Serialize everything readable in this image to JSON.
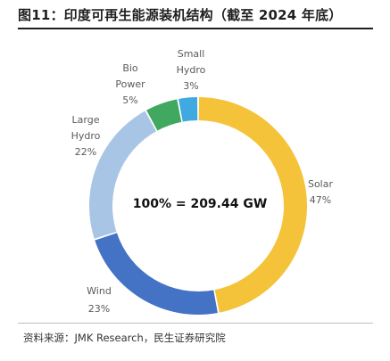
{
  "figure": {
    "title": "图11：印度可再生能源装机结构（截至 2024 年底）",
    "source": "资料来源：JMK Research，民生证券研究院"
  },
  "chart_data": {
    "type": "pie",
    "style": "donut",
    "center_label": "100% = 209.44 GW",
    "slices": [
      {
        "name": "Solar",
        "value": 47,
        "value_label": "47%",
        "color": "#f4c33a"
      },
      {
        "name": "Wind",
        "value": 23,
        "value_label": "23%",
        "color": "#4472c4"
      },
      {
        "name": "Large Hydro",
        "value": 22,
        "value_label": "22%",
        "color": "#a9c5e6"
      },
      {
        "name": "Bio Power",
        "value": 5,
        "value_label": "5%",
        "color": "#41a85f"
      },
      {
        "name": "Small Hydro",
        "value": 3,
        "value_label": "3%",
        "color": "#3fa9e0"
      }
    ]
  }
}
